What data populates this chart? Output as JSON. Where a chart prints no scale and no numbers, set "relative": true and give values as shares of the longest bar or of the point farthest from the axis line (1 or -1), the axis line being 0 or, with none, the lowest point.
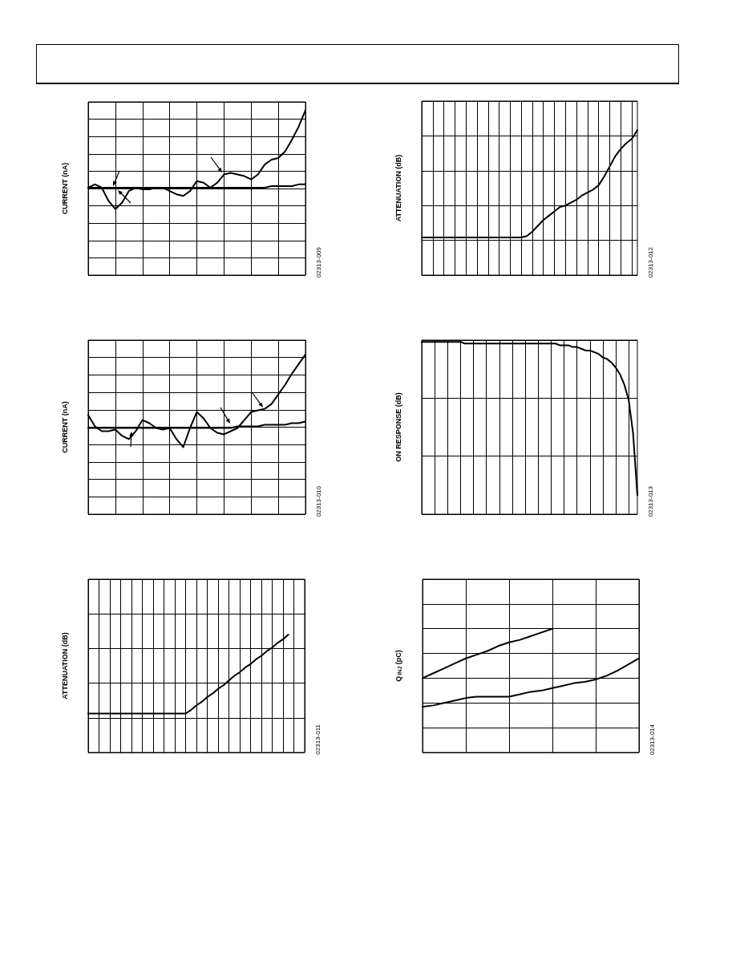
{
  "chart_data": [
    {
      "type": "line",
      "relative": true,
      "ylabel": "CURRENT (nA)",
      "grid": true,
      "marker": "none",
      "line_style": "solid",
      "annotations": [
        "02313-009"
      ],
      "categories": [
        null,
        null,
        null,
        null,
        null,
        null,
        null,
        null,
        null,
        null,
        null,
        null,
        null,
        null,
        null,
        null,
        null,
        null,
        null,
        null,
        null,
        null,
        null,
        null,
        null,
        null,
        null,
        null,
        null,
        null,
        null,
        null,
        null
      ],
      "series": [
        {
          "color": "#000000",
          "values": [
            0.53,
            0.55,
            0.53,
            0.45,
            0.4,
            0.44,
            0.51,
            0.53,
            0.52,
            0.52,
            0.53,
            0.53,
            0.51,
            0.49,
            0.48,
            0.51,
            0.57,
            0.56,
            0.53,
            0.56,
            0.61,
            0.62,
            0.61,
            0.6,
            0.58,
            0.61,
            0.67,
            0.7,
            0.71,
            0.75,
            0.82,
            0.9,
            1.0
          ]
        },
        {
          "color": "#000000",
          "values": [
            0.53,
            0.53,
            0.53,
            0.53,
            0.53,
            0.53,
            0.53,
            0.53,
            0.53,
            0.53,
            0.53,
            0.53,
            0.53,
            0.53,
            0.53,
            0.53,
            0.53,
            0.53,
            0.53,
            0.53,
            0.53,
            0.53,
            0.53,
            0.53,
            0.53,
            0.53,
            0.53,
            0.54,
            0.54,
            0.54,
            0.54,
            0.55,
            0.55
          ]
        }
      ]
    },
    {
      "type": "line",
      "relative": true,
      "ylabel": "ATTENUATION (dB)",
      "grid": true,
      "marker": "none",
      "line_style": "solid",
      "annotations": [
        "02313-012"
      ],
      "categories": [
        null,
        null,
        null,
        null,
        null,
        null,
        null,
        null,
        null,
        null,
        null,
        null,
        null,
        null,
        null,
        null,
        null,
        null,
        null,
        null,
        null,
        null,
        null,
        null,
        null,
        null,
        null,
        null,
        null,
        null,
        null,
        null,
        null,
        null,
        null,
        null,
        null,
        null,
        null,
        null
      ],
      "series": [
        {
          "color": "#000000",
          "values": [
            0.26,
            0.26,
            0.26,
            0.26,
            0.26,
            0.26,
            0.26,
            0.26,
            0.26,
            0.26,
            0.26,
            0.26,
            0.26,
            0.26,
            0.26,
            0.26,
            0.26,
            0.26,
            0.26,
            0.27,
            0.3,
            0.34,
            0.38,
            0.41,
            0.44,
            0.47,
            0.48,
            0.5,
            0.52,
            0.55,
            0.57,
            0.59,
            0.62,
            0.68,
            0.75,
            0.82,
            0.87,
            0.91,
            0.94,
            1.0
          ]
        }
      ]
    },
    {
      "type": "line",
      "relative": true,
      "ylabel": "CURRENT (nA)",
      "grid": true,
      "marker": "none",
      "line_style": "solid",
      "annotations": [
        "02313-010"
      ],
      "categories": [
        null,
        null,
        null,
        null,
        null,
        null,
        null,
        null,
        null,
        null,
        null,
        null,
        null,
        null,
        null,
        null,
        null,
        null,
        null,
        null,
        null,
        null,
        null,
        null,
        null,
        null,
        null,
        null,
        null,
        null,
        null,
        null,
        null
      ],
      "series": [
        {
          "color": "#000000",
          "values": [
            0.62,
            0.55,
            0.52,
            0.52,
            0.53,
            0.49,
            0.47,
            0.52,
            0.59,
            0.57,
            0.54,
            0.53,
            0.54,
            0.47,
            0.42,
            0.54,
            0.64,
            0.6,
            0.54,
            0.51,
            0.5,
            0.52,
            0.54,
            0.59,
            0.64,
            0.65,
            0.66,
            0.69,
            0.75,
            0.81,
            0.88,
            0.94,
            1.0
          ]
        },
        {
          "color": "#000000",
          "values": [
            0.54,
            0.54,
            0.54,
            0.54,
            0.54,
            0.54,
            0.54,
            0.54,
            0.54,
            0.54,
            0.54,
            0.54,
            0.54,
            0.54,
            0.54,
            0.54,
            0.54,
            0.54,
            0.54,
            0.54,
            0.54,
            0.54,
            0.55,
            0.55,
            0.55,
            0.55,
            0.56,
            0.56,
            0.56,
            0.56,
            0.57,
            0.57,
            0.58
          ]
        }
      ]
    },
    {
      "type": "line",
      "relative": true,
      "ylabel": "ON RESPONSE (dB)",
      "grid": true,
      "marker": "none",
      "line_style": "solid",
      "annotations": [
        "02313-013"
      ],
      "categories": [
        null,
        null,
        null,
        null,
        null,
        null,
        null,
        null,
        null,
        null,
        null,
        null,
        null,
        null,
        null,
        null,
        null,
        null,
        null,
        null,
        null,
        null,
        null,
        null,
        null,
        null,
        null,
        null,
        null,
        null,
        null,
        null,
        null,
        null,
        null,
        null,
        null,
        null,
        null,
        null,
        null,
        null,
        null,
        null,
        null,
        null,
        null,
        null,
        null,
        null,
        null
      ],
      "series": [
        {
          "color": "#000000",
          "values": [
            1.0,
            1.0,
            1.0,
            1.0,
            1.0,
            1.0,
            1.0,
            1.0,
            1.0,
            1.0,
            0.99,
            0.99,
            0.99,
            0.99,
            0.99,
            0.99,
            0.99,
            0.99,
            0.99,
            0.99,
            0.99,
            0.99,
            0.99,
            0.99,
            0.99,
            0.99,
            0.99,
            0.99,
            0.99,
            0.99,
            0.99,
            0.99,
            0.98,
            0.98,
            0.98,
            0.97,
            0.97,
            0.96,
            0.95,
            0.95,
            0.94,
            0.93,
            0.91,
            0.9,
            0.88,
            0.85,
            0.81,
            0.75,
            0.66,
            0.47,
            0.11
          ]
        }
      ]
    },
    {
      "type": "line",
      "relative": true,
      "ylabel": "ATTENUATION (dB)",
      "grid": true,
      "marker": "none",
      "line_style": "solid",
      "annotations": [
        "02313-011"
      ],
      "categories": [
        null,
        null,
        null,
        null,
        null,
        null,
        null,
        null,
        null,
        null,
        null,
        null,
        null,
        null,
        null,
        null,
        null,
        null,
        null,
        null,
        null,
        null,
        null,
        null,
        null,
        null,
        null,
        null,
        null,
        null,
        null,
        null,
        null,
        null,
        null,
        null,
        null,
        null,
        null,
        null,
        null
      ],
      "series": [
        {
          "color": "#000000",
          "values": [
            0.33,
            0.33,
            0.33,
            0.33,
            0.33,
            0.33,
            0.33,
            0.33,
            0.33,
            0.33,
            0.33,
            0.33,
            0.33,
            0.33,
            0.33,
            0.33,
            0.33,
            0.33,
            0.33,
            0.36,
            0.4,
            0.43,
            0.47,
            0.5,
            0.54,
            0.57,
            0.61,
            0.65,
            0.68,
            0.72,
            0.75,
            0.79,
            0.82,
            0.86,
            0.89,
            0.93,
            0.96,
            1.0,
            null,
            null,
            null
          ]
        }
      ]
    },
    {
      "type": "line",
      "relative": true,
      "ylabel": "Q$_{INJ}$ (pC)",
      "grid": true,
      "marker": "none",
      "line_style": "solid",
      "annotations": [
        "02313-014"
      ],
      "categories": [
        null,
        null,
        null,
        null,
        null,
        null,
        null,
        null,
        null,
        null,
        null,
        null,
        null,
        null,
        null,
        null,
        null,
        null,
        null,
        null,
        null
      ],
      "series": [
        {
          "color": "#000000",
          "values": [
            0.6,
            0.64,
            0.68,
            0.72,
            0.76,
            0.79,
            0.82,
            0.86,
            0.89,
            0.91,
            0.94,
            0.97,
            1.0,
            null,
            null,
            null,
            null,
            null,
            null,
            null,
            null
          ]
        },
        {
          "color": "#000000",
          "values": [
            0.37,
            0.38,
            0.4,
            0.42,
            0.44,
            0.45,
            0.45,
            0.45,
            0.45,
            0.47,
            0.49,
            0.5,
            0.52,
            0.54,
            0.56,
            0.57,
            0.59,
            0.62,
            0.66,
            0.71,
            0.76
          ]
        }
      ]
    }
  ]
}
